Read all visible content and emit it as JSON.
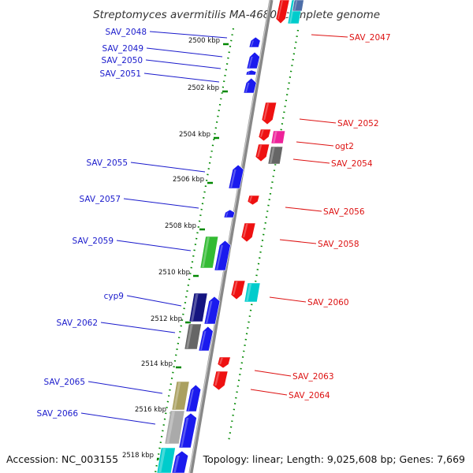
{
  "title": "Streptomyces avermitilis MA-4680, complete genome",
  "footer": {
    "accession": "Accession: NC_003155",
    "summary": "Topology: linear; Length: 9,025,608 bp; Genes: 7,669"
  },
  "ticks": [
    "2500 kbp",
    "2502 kbp",
    "2504 kbp",
    "2506 kbp",
    "2508 kbp",
    "2510 kbp",
    "2512 kbp",
    "2514 kbp",
    "2516 kbp",
    "2518 kbp"
  ],
  "genes_left": [
    "SAV_2048",
    "SAV_2049",
    "SAV_2050",
    "SAV_2051",
    "SAV_2055",
    "SAV_2057",
    "SAV_2059",
    "cyp9",
    "SAV_2062",
    "SAV_2065",
    "SAV_2066"
  ],
  "genes_right": [
    "SAV_2047",
    "SAV_2052",
    "ogt2",
    "SAV_2054",
    "SAV_2056",
    "SAV_2058",
    "SAV_2060",
    "SAV_2063",
    "SAV_2064"
  ],
  "colors": {
    "forward_gene": "#1a1aee",
    "reverse_gene": "#ee1111",
    "left_label": "#1a1acc",
    "right_label": "#dd1111",
    "tick_mark": "#008800",
    "axis": "#888888"
  }
}
